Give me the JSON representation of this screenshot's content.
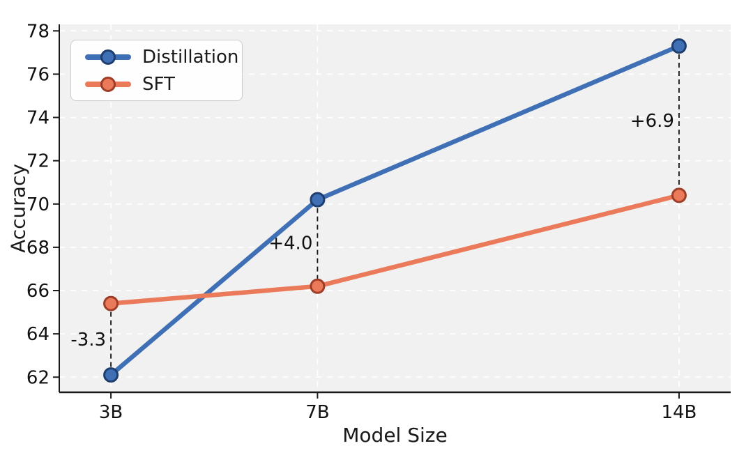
{
  "chart_data": {
    "type": "line",
    "title": "",
    "xlabel": "Model Size",
    "ylabel": "Accuracy",
    "categories": [
      "3B",
      "7B",
      "14B"
    ],
    "x_positions": [
      3,
      7,
      14
    ],
    "xlim": [
      2.0,
      15.0
    ],
    "ylim": [
      61.3,
      78.3
    ],
    "yticks": [
      62,
      64,
      66,
      68,
      70,
      72,
      74,
      76,
      78
    ],
    "grid": "white dashed horizontal and vertical gridlines on light gray panel",
    "legend_position": "upper left",
    "series": [
      {
        "name": "Distillation",
        "values": [
          62.1,
          70.2,
          77.3
        ],
        "color": "#3f6fb5",
        "edge_color": "#1d3e6e",
        "marker": "circle"
      },
      {
        "name": "SFT",
        "values": [
          65.4,
          66.2,
          70.4
        ],
        "color": "#ea7a5a",
        "edge_color": "#9e3d28",
        "marker": "circle"
      }
    ],
    "annotations": [
      {
        "category": "3B",
        "label": "-3.3"
      },
      {
        "category": "7B",
        "label": "+4.0"
      },
      {
        "category": "14B",
        "label": "+6.9"
      }
    ],
    "colors": {
      "plot_bg": "#f1f1f2",
      "grid": "#ffffff",
      "axis": "#1a1a1a",
      "tick_text": "#111111",
      "annotation_line": "#111111",
      "annotation_text": "#111111"
    }
  }
}
